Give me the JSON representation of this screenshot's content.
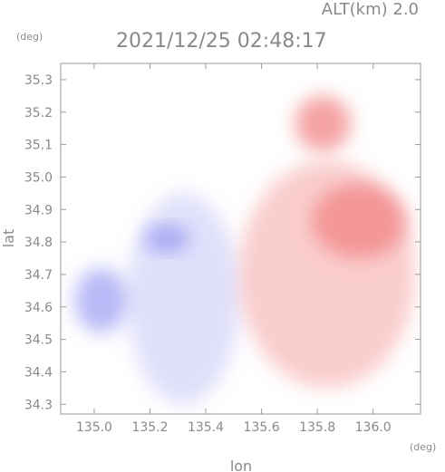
{
  "chart_data": {
    "type": "heatmap",
    "title": "2021/12/25 02:48:17",
    "subtitle": "ALT(km) 2.0",
    "xlabel": "lon",
    "ylabel": "lat",
    "x_unit": "(deg)",
    "y_unit": "(deg)",
    "xlim": [
      134.88,
      136.17
    ],
    "ylim": [
      34.27,
      35.35
    ],
    "x_ticks": [
      "135.0",
      "135.2",
      "135.4",
      "135.6",
      "135.8",
      "136.0"
    ],
    "x_tick_values": [
      135.0,
      135.2,
      135.4,
      135.6,
      135.8,
      136.0
    ],
    "y_ticks": [
      "34.3",
      "34.4",
      "34.5",
      "34.6",
      "34.7",
      "34.8",
      "34.9",
      "35.0",
      "35.1",
      "35.2",
      "35.3"
    ],
    "y_tick_values": [
      34.3,
      34.4,
      34.5,
      34.6,
      34.7,
      34.8,
      34.9,
      35.0,
      35.1,
      35.2,
      35.3
    ],
    "grid": false,
    "colors": {
      "negative": "#8080f0",
      "neutral": "#ffffff",
      "positive": "#f07070",
      "axis": "#9a9a9a",
      "text": "#8a8a8a"
    },
    "regions": [
      {
        "sign": "negative",
        "intensity": 0.25,
        "lon": [
          135.12,
          135.52
        ],
        "lat": [
          34.3,
          34.95
        ]
      },
      {
        "sign": "negative",
        "intensity": 0.55,
        "lon": [
          134.93,
          135.12
        ],
        "lat": [
          34.52,
          34.72
        ]
      },
      {
        "sign": "negative",
        "intensity": 0.6,
        "lon": [
          135.18,
          135.34
        ],
        "lat": [
          34.77,
          34.85
        ]
      },
      {
        "sign": "positive",
        "intensity": 0.35,
        "lon": [
          135.52,
          136.15
        ],
        "lat": [
          34.35,
          35.05
        ]
      },
      {
        "sign": "positive",
        "intensity": 0.6,
        "lon": [
          135.78,
          136.12
        ],
        "lat": [
          34.75,
          34.98
        ]
      },
      {
        "sign": "positive",
        "intensity": 0.65,
        "lon": [
          135.72,
          135.92
        ],
        "lat": [
          35.08,
          35.25
        ]
      }
    ]
  }
}
